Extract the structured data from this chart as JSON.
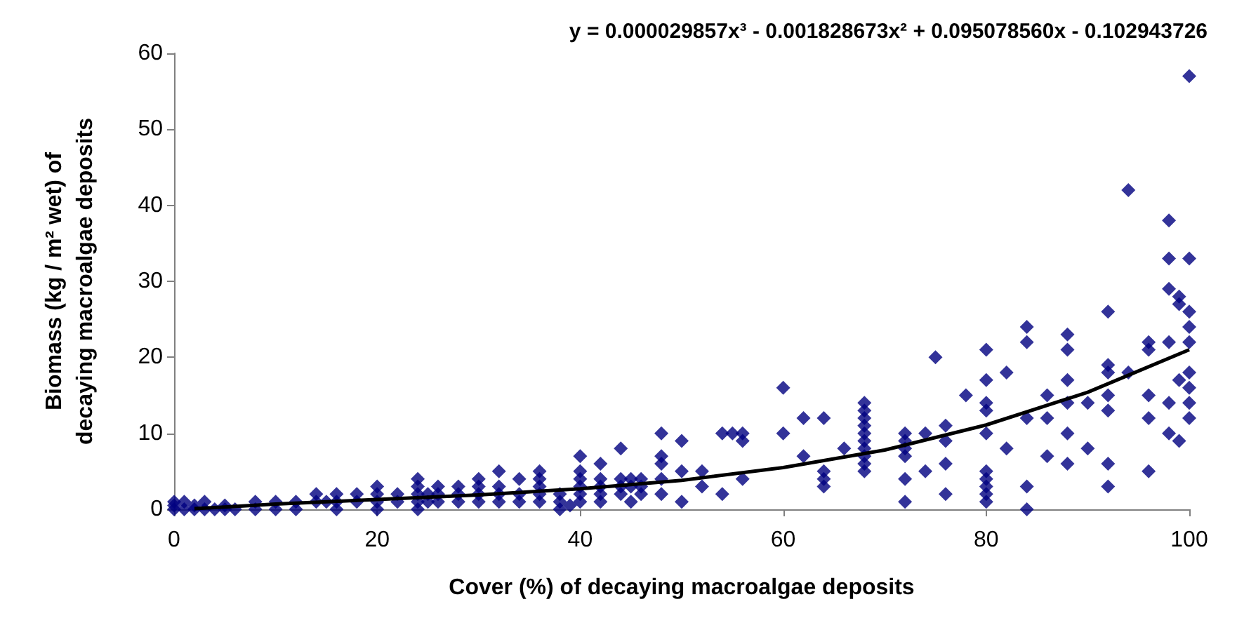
{
  "chart_data": {
    "type": "scatter",
    "title": "y = 0.000029857x³ - 0.001828673x² + 0.095078560x - 0.102943726",
    "xlabel": "Cover (%) of decaying macroalgae deposits",
    "ylabel": "Biomass (kg / m² wet) of decaying macroalgae deposits",
    "xlim": [
      0,
      100
    ],
    "xticks": [
      0,
      20,
      40,
      60,
      80,
      100
    ],
    "ylim": [
      0,
      60
    ],
    "yticks": [
      0,
      10,
      20,
      30,
      40,
      50,
      60
    ],
    "grid": false,
    "marker": "diamond",
    "series": [
      {
        "color": "#000080",
        "x": [
          0,
          0,
          0,
          1,
          1,
          2,
          2,
          3,
          3,
          4,
          5,
          5,
          6,
          8,
          8,
          10,
          10,
          12,
          12,
          14,
          14,
          15,
          16,
          16,
          16,
          18,
          18,
          20,
          20,
          20,
          20,
          22,
          22,
          24,
          24,
          24,
          24,
          24,
          25,
          25,
          26,
          26,
          26,
          28,
          28,
          28,
          30,
          30,
          30,
          30,
          32,
          32,
          32,
          32,
          34,
          34,
          34,
          36,
          36,
          36,
          36,
          36,
          38,
          38,
          38,
          39,
          40,
          40,
          40,
          40,
          40,
          40,
          42,
          42,
          42,
          42,
          42,
          44,
          44,
          44,
          44,
          45,
          45,
          45,
          46,
          46,
          46,
          48,
          48,
          48,
          48,
          48,
          50,
          50,
          50,
          52,
          52,
          54,
          54,
          55,
          56,
          56,
          56,
          60,
          60,
          62,
          62,
          64,
          64,
          64,
          64,
          66,
          68,
          68,
          68,
          68,
          68,
          68,
          68,
          68,
          68,
          68,
          72,
          72,
          72,
          72,
          72,
          72,
          74,
          74,
          75,
          76,
          76,
          76,
          76,
          78,
          80,
          80,
          80,
          80,
          80,
          80,
          80,
          80,
          80,
          80,
          82,
          82,
          84,
          84,
          84,
          84,
          84,
          86,
          86,
          86,
          88,
          88,
          88,
          88,
          88,
          88,
          90,
          90,
          92,
          92,
          92,
          92,
          92,
          92,
          92,
          94,
          94,
          96,
          96,
          96,
          96,
          96,
          98,
          98,
          98,
          98,
          98,
          98,
          99,
          99,
          99,
          99,
          100,
          100,
          100,
          100,
          100,
          100,
          100,
          100,
          100
        ],
        "values": [
          0,
          0.5,
          1,
          0,
          1,
          0,
          0.5,
          0,
          1,
          0,
          0,
          0.5,
          0,
          0,
          1,
          0,
          1,
          0,
          1,
          1,
          2,
          1,
          0,
          1,
          2,
          1,
          2,
          0,
          1,
          2,
          3,
          1,
          2,
          0,
          1,
          2,
          3,
          4,
          1,
          2,
          1,
          2,
          3,
          1,
          2,
          3,
          1,
          2,
          3,
          4,
          1,
          2,
          3,
          5,
          1,
          2,
          4,
          1,
          2,
          3,
          4,
          5,
          0,
          1,
          2,
          0.5,
          1,
          2,
          3,
          4,
          5,
          7,
          1,
          2,
          3,
          4,
          6,
          2,
          3,
          4,
          8,
          1,
          3,
          4,
          2,
          3,
          4,
          2,
          4,
          6,
          7,
          10,
          1,
          5,
          9,
          3,
          5,
          2,
          10,
          10,
          4,
          9,
          10,
          10,
          16,
          7,
          12,
          3,
          4,
          5,
          12,
          8,
          5,
          6,
          7,
          8,
          9,
          10,
          11,
          12,
          13,
          14,
          1,
          4,
          7,
          8,
          9,
          10,
          5,
          10,
          20,
          2,
          6,
          9,
          11,
          15,
          1,
          2,
          3,
          4,
          5,
          10,
          13,
          14,
          17,
          21,
          8,
          18,
          0,
          3,
          12,
          22,
          24,
          7,
          12,
          15,
          6,
          10,
          14,
          17,
          21,
          23,
          8,
          14,
          3,
          6,
          13,
          15,
          18,
          19,
          26,
          18,
          42,
          5,
          12,
          15,
          21,
          22,
          10,
          14,
          22,
          29,
          33,
          38,
          9,
          17,
          27,
          28,
          12,
          14,
          16,
          18,
          22,
          24,
          26,
          33,
          57
        ]
      },
      {
        "type": "line",
        "color": "#000000",
        "marker": "none",
        "line_style": "solid",
        "x": [
          2,
          5,
          10,
          20,
          30,
          40,
          50,
          60,
          70,
          80,
          90,
          100
        ],
        "values": [
          0.1,
          0.3,
          0.7,
          1.3,
          1.9,
          2.7,
          3.8,
          5.5,
          7.8,
          11.1,
          15.4,
          21.0
        ]
      }
    ]
  }
}
